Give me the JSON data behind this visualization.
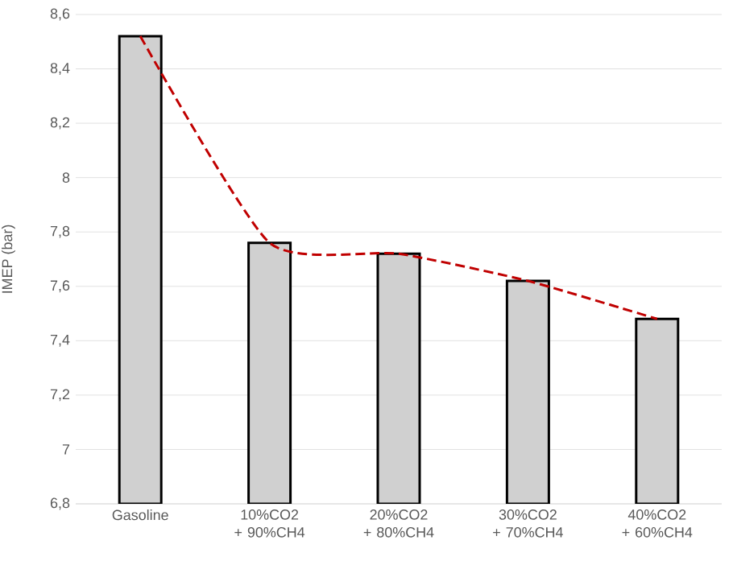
{
  "chart_data": {
    "type": "bar",
    "ylabel": "IMEP (bar)",
    "categories": [
      "Gasoline",
      "10%CO2 + 90%CH4",
      "20%CO2 + 80%CH4",
      "30%CO2 + 70%CH4",
      "40%CO2 + 60%CH4"
    ],
    "series": [
      {
        "color": "#d0d0d0",
        "values": [
          8.52,
          7.76,
          7.72,
          7.62,
          7.48
        ]
      },
      {
        "type": "line",
        "color": "#c00000",
        "line_style": "dashed",
        "marker": "none",
        "values": [
          8.52,
          7.76,
          7.72,
          7.62,
          7.48
        ]
      }
    ],
    "ylim": [
      6.8,
      8.6
    ],
    "yticks": [
      {
        "value": 6.8,
        "label": "6,8"
      },
      {
        "value": 7,
        "label": "7"
      },
      {
        "value": 7.2,
        "label": "7,2"
      },
      {
        "value": 7.4,
        "label": "7,4"
      },
      {
        "value": 7.6,
        "label": "7,6"
      },
      {
        "value": 7.8,
        "label": "7,8"
      },
      {
        "value": 8,
        "label": "8"
      },
      {
        "value": 8.2,
        "label": "8,2"
      },
      {
        "value": 8.4,
        "label": "8,4"
      },
      {
        "value": 8.6,
        "label": "8,6"
      }
    ],
    "grid": "y"
  }
}
